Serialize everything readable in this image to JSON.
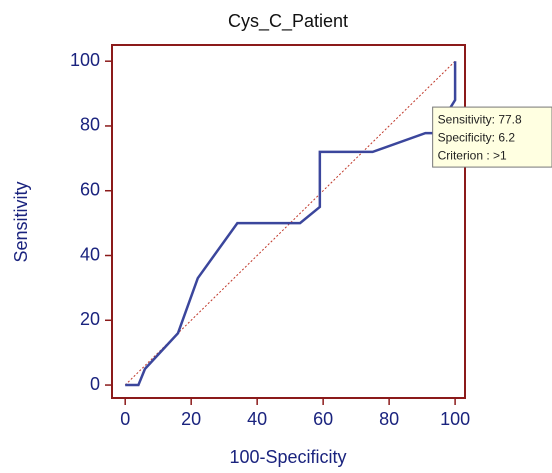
{
  "chart_data": {
    "type": "line",
    "title": "Cys_C_Patient",
    "x_label": "100-Specificity",
    "y_label": "Sensitivity",
    "x": [
      0,
      4,
      6,
      16,
      22,
      34,
      53,
      59,
      59,
      75,
      91,
      93.8,
      100,
      100
    ],
    "series": [
      {
        "color": "#3b469c",
        "values": [
          0,
          0,
          5,
          16,
          33,
          50,
          50,
          55,
          72,
          72,
          77.8,
          77.8,
          88,
          100
        ]
      }
    ],
    "diagonal": {
      "x": [
        0,
        100
      ],
      "values": [
        0,
        100
      ],
      "color": "#c0392b"
    },
    "annotation": {
      "x": 93.8,
      "y": 77.8,
      "lines": [
        "Sensitivity: 77.8",
        "Specificity: 6.2",
        "Criterion : >1"
      ]
    },
    "xlim": [
      -4,
      103
    ],
    "ylim": [
      -4,
      105
    ],
    "xticks": [
      0,
      20,
      40,
      60,
      80,
      100
    ],
    "yticks": [
      0,
      20,
      40,
      60,
      80,
      100
    ]
  }
}
